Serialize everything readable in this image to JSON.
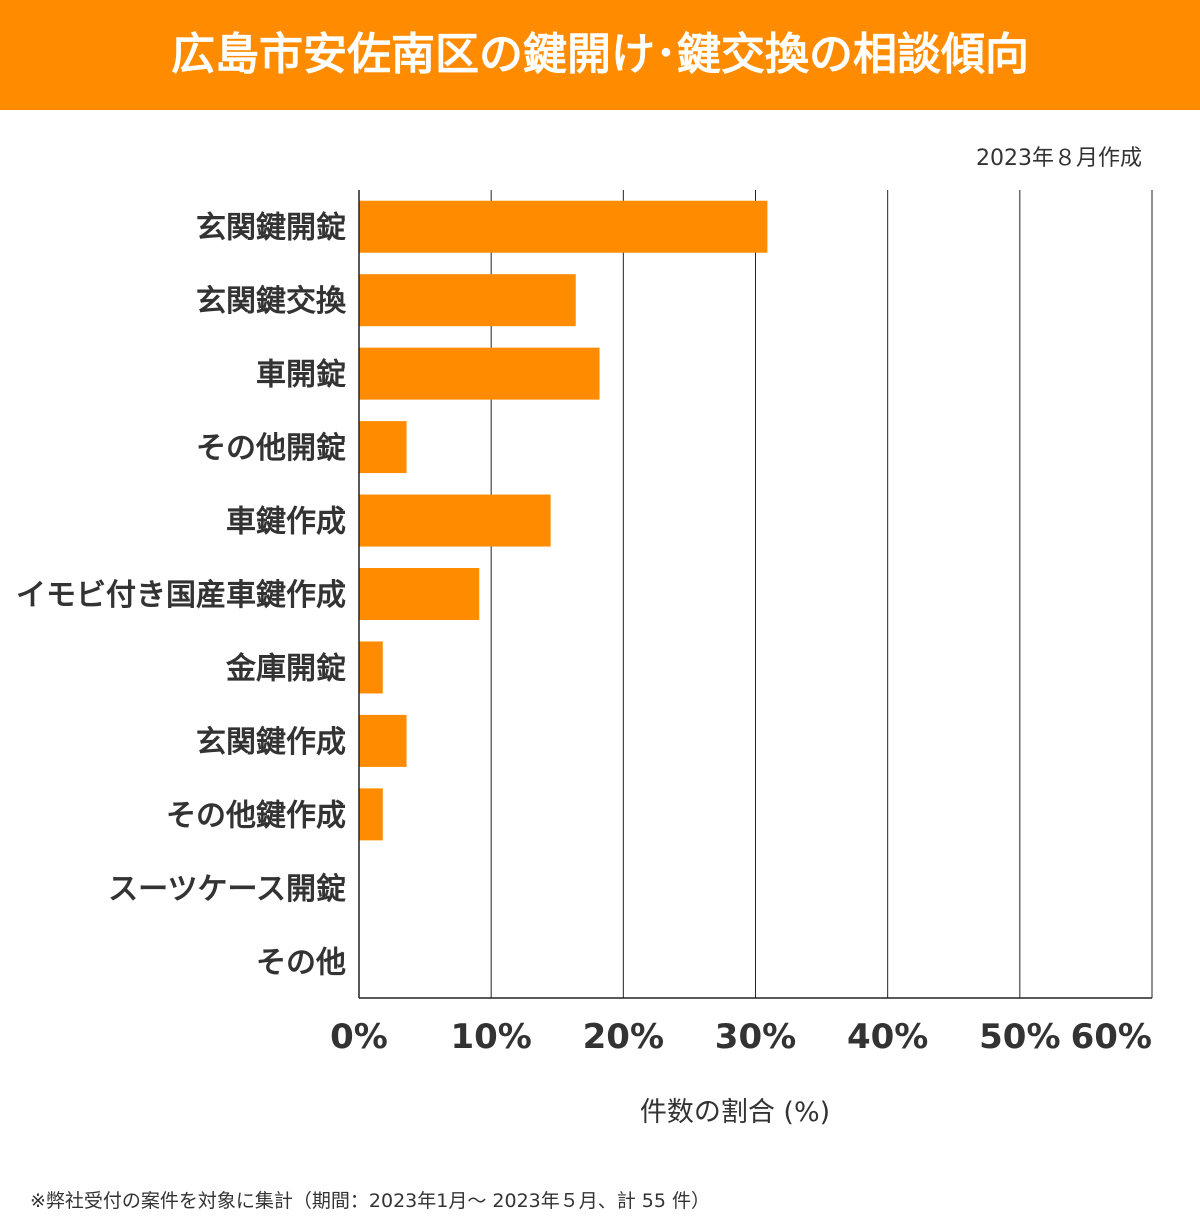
{
  "title": "広島市安佐南区の鍵開け･鍵交換の相談傾向",
  "date": "2023年８月作成",
  "footnote": "※弊社受付の案件を対象に集計（期間：2023年1月～ 2023年５月、計 55 件）",
  "colors": {
    "bar": "#FF8C00",
    "header": "#FF8C00"
  },
  "chart_data": {
    "type": "bar",
    "orientation": "horizontal",
    "categories": [
      "玄関鍵開錠",
      "玄関鍵交換",
      "車開錠",
      "その他開錠",
      "車鍵作成",
      "イモビ付き国産車鍵作成",
      "金庫開錠",
      "玄関鍵作成",
      "その他鍵作成",
      "スーツケース開錠",
      "その他"
    ],
    "values": [
      30.9,
      16.4,
      18.2,
      3.6,
      14.5,
      9.1,
      1.8,
      3.6,
      1.8,
      0,
      0
    ],
    "xlabel": "件数の割合 (%)",
    "xlim": [
      0,
      60
    ],
    "ticks": [
      "0%",
      "10%",
      "20%",
      "30%",
      "40%",
      "50%",
      "60%"
    ],
    "grid": true
  }
}
